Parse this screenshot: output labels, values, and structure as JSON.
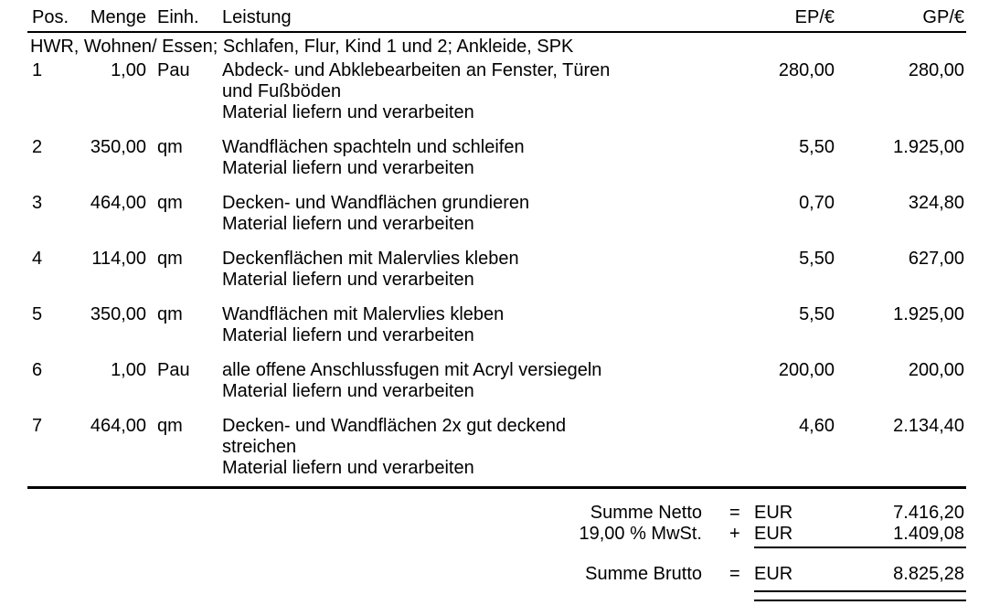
{
  "table": {
    "headers": {
      "pos": "Pos.",
      "menge": "Menge",
      "einh": "Einh.",
      "leistung": "Leistung",
      "ep": "EP/€",
      "gp": "GP/€"
    },
    "group_header": "HWR, Wohnen/ Essen; Schlafen, Flur, Kind 1 und 2; Ankleide, SPK",
    "rows": [
      {
        "pos": "1",
        "menge": "1,00",
        "einh": "Pau",
        "leistung_lines": [
          "Abdeck- und Abklebearbeiten an Fenster, Türen",
          "und Fußböden",
          "Material liefern und verarbeiten"
        ],
        "ep": "280,00",
        "gp": "280,00"
      },
      {
        "pos": "2",
        "menge": "350,00",
        "einh": "qm",
        "leistung_lines": [
          "Wandflächen spachteln und schleifen",
          "Material liefern und verarbeiten"
        ],
        "ep": "5,50",
        "gp": "1.925,00"
      },
      {
        "pos": "3",
        "menge": "464,00",
        "einh": "qm",
        "leistung_lines": [
          "Decken- und Wandflächen grundieren",
          "Material liefern und verarbeiten"
        ],
        "ep": "0,70",
        "gp": "324,80"
      },
      {
        "pos": "4",
        "menge": "114,00",
        "einh": "qm",
        "leistung_lines": [
          "Deckenflächen mit Malervlies kleben",
          "Material liefern und verarbeiten"
        ],
        "ep": "5,50",
        "gp": "627,00"
      },
      {
        "pos": "5",
        "menge": "350,00",
        "einh": "qm",
        "leistung_lines": [
          "Wandflächen mit Malervlies kleben",
          "Material liefern und verarbeiten"
        ],
        "ep": "5,50",
        "gp": "1.925,00"
      },
      {
        "pos": "6",
        "menge": "1,00",
        "einh": "Pau",
        "leistung_lines": [
          "alle offene Anschlussfugen mit Acryl versiegeln",
          "Material liefern und verarbeiten"
        ],
        "ep": "200,00",
        "gp": "200,00"
      },
      {
        "pos": "7",
        "menge": "464,00",
        "einh": "qm",
        "leistung_lines": [
          "Decken- und Wandflächen 2x gut deckend",
          "streichen",
          "Material liefern und verarbeiten"
        ],
        "ep": "4,60",
        "gp": "2.134,40"
      }
    ]
  },
  "summary": {
    "netto": {
      "label": "Summe Netto",
      "op": "=",
      "currency": "EUR",
      "value": "7.416,20"
    },
    "mwst": {
      "label": "19,00 % MwSt.",
      "op": "+",
      "currency": "EUR",
      "value": "1.409,08"
    },
    "brutto": {
      "label": "Summe Brutto",
      "op": "=",
      "currency": "EUR",
      "value": "8.825,28"
    }
  },
  "colors": {
    "text": "#000000",
    "background": "#ffffff",
    "rule": "#000000"
  }
}
